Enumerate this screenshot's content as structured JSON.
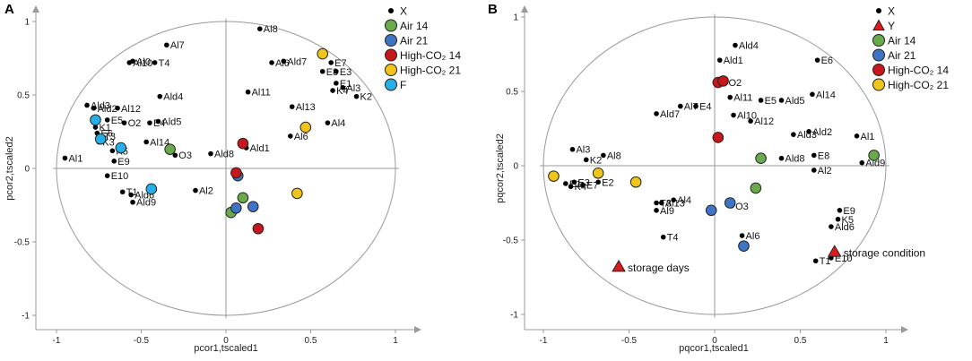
{
  "colors": {
    "x": "#000000",
    "air14": "#6aaa4c",
    "air21": "#3f74c4",
    "co2_14": "#c8161d",
    "co2_21": "#f0c51a",
    "f": "#25aee8",
    "y": "#e0191e",
    "guide": "#999999"
  },
  "chart_data": [
    {
      "type": "scatter",
      "panel": "A",
      "xlabel": "pcor1,tscaled1",
      "ylabel": "pcor2,tscaled2",
      "xlim": [
        -1.1,
        1.1
      ],
      "ylim": [
        -1.1,
        1.1
      ],
      "xticks": [
        "-1",
        "-0.5",
        "0",
        "0.5",
        "1"
      ],
      "yticks": [
        "-1",
        "-0.5",
        "0",
        "0.5",
        "1"
      ],
      "circle_radius": 1,
      "legend": [
        {
          "label": "X",
          "marker": "dot",
          "color_key": "x"
        },
        {
          "label": "Air 14",
          "marker": "circle",
          "color_key": "air14"
        },
        {
          "label": "Air 21",
          "marker": "circle",
          "color_key": "air21"
        },
        {
          "label": "High-CO₂ 14",
          "marker": "circle",
          "color_key": "co2_14"
        },
        {
          "label": "High-CO₂ 21",
          "marker": "circle",
          "color_key": "co2_21"
        },
        {
          "label": "F",
          "marker": "circle",
          "color_key": "f"
        }
      ],
      "variables": [
        {
          "label": "Al8",
          "x": 0.2,
          "y": 0.95
        },
        {
          "label": "Al7",
          "x": -0.35,
          "y": 0.84
        },
        {
          "label": "Al0",
          "x": -0.55,
          "y": 0.73
        },
        {
          "label": "Al10",
          "x": -0.57,
          "y": 0.72
        },
        {
          "label": "T4",
          "x": -0.42,
          "y": 0.72
        },
        {
          "label": "Ald7",
          "x": 0.34,
          "y": 0.73
        },
        {
          "label": "Al6",
          "x": 0.27,
          "y": 0.72
        },
        {
          "label": "E7",
          "x": 0.62,
          "y": 0.72
        },
        {
          "label": "E8",
          "x": 0.57,
          "y": 0.66
        },
        {
          "label": "E3",
          "x": 0.65,
          "y": 0.66
        },
        {
          "label": "E1",
          "x": 0.65,
          "y": 0.58
        },
        {
          "label": "Al3",
          "x": 0.69,
          "y": 0.55
        },
        {
          "label": "K4",
          "x": 0.63,
          "y": 0.53
        },
        {
          "label": "K2",
          "x": 0.77,
          "y": 0.49
        },
        {
          "label": "Al11",
          "x": 0.13,
          "y": 0.52
        },
        {
          "label": "Ald4",
          "x": -0.39,
          "y": 0.49
        },
        {
          "label": "Al13",
          "x": 0.39,
          "y": 0.42
        },
        {
          "label": "Al4",
          "x": 0.6,
          "y": 0.31
        },
        {
          "label": "Ald5",
          "x": -0.4,
          "y": 0.32
        },
        {
          "label": "Al6",
          "x": 0.38,
          "y": 0.22
        },
        {
          "label": "Ald3",
          "x": -0.82,
          "y": 0.43
        },
        {
          "label": "Ald2",
          "x": -0.78,
          "y": 0.41
        },
        {
          "label": "Al12",
          "x": -0.64,
          "y": 0.41
        },
        {
          "label": "E5",
          "x": -0.7,
          "y": 0.33
        },
        {
          "label": "O2",
          "x": -0.6,
          "y": 0.31
        },
        {
          "label": "E4",
          "x": -0.45,
          "y": 0.31
        },
        {
          "label": "K1",
          "x": -0.77,
          "y": 0.28
        },
        {
          "label": "E6",
          "x": -0.76,
          "y": 0.24
        },
        {
          "label": "T3",
          "x": -0.74,
          "y": 0.22
        },
        {
          "label": "K3",
          "x": -0.75,
          "y": 0.18
        },
        {
          "label": "Al14",
          "x": -0.47,
          "y": 0.18
        },
        {
          "label": "K5",
          "x": -0.67,
          "y": 0.12
        },
        {
          "label": "E9",
          "x": -0.66,
          "y": 0.05
        },
        {
          "label": "O3",
          "x": -0.3,
          "y": 0.09
        },
        {
          "label": "Al1",
          "x": -0.95,
          "y": 0.07
        },
        {
          "label": "Ald1",
          "x": 0.12,
          "y": 0.14
        },
        {
          "label": "Ald8",
          "x": -0.09,
          "y": 0.1
        },
        {
          "label": "E10",
          "x": -0.7,
          "y": -0.05
        },
        {
          "label": "Al2",
          "x": -0.18,
          "y": -0.15
        },
        {
          "label": "T1",
          "x": -0.61,
          "y": -0.16
        },
        {
          "label": "Ald6",
          "x": -0.56,
          "y": -0.18
        },
        {
          "label": "Ald9",
          "x": -0.55,
          "y": -0.23
        }
      ],
      "samples": [
        {
          "group": "air14",
          "x": -0.33,
          "y": 0.13
        },
        {
          "group": "air14",
          "x": 0.1,
          "y": -0.2
        },
        {
          "group": "air14",
          "x": 0.03,
          "y": -0.3
        },
        {
          "group": "air21",
          "x": 0.06,
          "y": -0.27
        },
        {
          "group": "air21",
          "x": 0.16,
          "y": -0.26
        },
        {
          "group": "air21",
          "x": 0.07,
          "y": -0.05
        },
        {
          "group": "co2_14",
          "x": 0.1,
          "y": 0.17
        },
        {
          "group": "co2_14",
          "x": 0.06,
          "y": -0.03
        },
        {
          "group": "co2_14",
          "x": 0.19,
          "y": -0.41
        },
        {
          "group": "co2_21",
          "x": 0.57,
          "y": 0.78
        },
        {
          "group": "co2_21",
          "x": 0.47,
          "y": 0.28
        },
        {
          "group": "co2_21",
          "x": 0.42,
          "y": -0.17
        },
        {
          "group": "f",
          "x": -0.77,
          "y": 0.33
        },
        {
          "group": "f",
          "x": -0.74,
          "y": 0.2
        },
        {
          "group": "f",
          "x": -0.62,
          "y": 0.14
        },
        {
          "group": "f",
          "x": -0.44,
          "y": -0.14
        }
      ]
    },
    {
      "type": "scatter",
      "panel": "B",
      "xlabel": "pqcor1,tscaled1",
      "ylabel": "pqcor2,tscaled2",
      "xlim": [
        -1.1,
        1.1
      ],
      "ylim": [
        -1.1,
        1.1
      ],
      "xticks": [
        "-1",
        "-0.5",
        "0",
        "0.5",
        "1"
      ],
      "yticks": [
        "-1",
        "-0.5",
        "0",
        "0.5",
        "1"
      ],
      "circle_radius": 1,
      "legend": [
        {
          "label": "X",
          "marker": "dot",
          "color_key": "x"
        },
        {
          "label": "Y",
          "marker": "triangle",
          "color_key": "y"
        },
        {
          "label": "Air 14",
          "marker": "circle",
          "color_key": "air14"
        },
        {
          "label": "Air 21",
          "marker": "circle",
          "color_key": "air21"
        },
        {
          "label": "High-CO₂ 14",
          "marker": "circle",
          "color_key": "co2_14"
        },
        {
          "label": "High-CO₂ 21",
          "marker": "circle",
          "color_key": "co2_21"
        }
      ],
      "variables": [
        {
          "label": "Ald4",
          "x": 0.12,
          "y": 0.81
        },
        {
          "label": "Ald1",
          "x": 0.03,
          "y": 0.71
        },
        {
          "label": "E6",
          "x": 0.6,
          "y": 0.71
        },
        {
          "label": "O2",
          "x": 0.06,
          "y": 0.56
        },
        {
          "label": "Al11",
          "x": 0.09,
          "y": 0.46
        },
        {
          "label": "E5",
          "x": 0.27,
          "y": 0.44
        },
        {
          "label": "Ald5",
          "x": 0.39,
          "y": 0.44
        },
        {
          "label": "Al14",
          "x": 0.57,
          "y": 0.48
        },
        {
          "label": "Al7",
          "x": -0.2,
          "y": 0.4
        },
        {
          "label": "E4",
          "x": -0.11,
          "y": 0.4
        },
        {
          "label": "Al10",
          "x": 0.11,
          "y": 0.34
        },
        {
          "label": "Ald7",
          "x": -0.34,
          "y": 0.35
        },
        {
          "label": "Al12",
          "x": 0.21,
          "y": 0.3
        },
        {
          "label": "Ald3",
          "x": 0.46,
          "y": 0.21
        },
        {
          "label": "Ald2",
          "x": 0.55,
          "y": 0.23
        },
        {
          "label": "Al1",
          "x": 0.83,
          "y": 0.2
        },
        {
          "label": "Al3",
          "x": -0.83,
          "y": 0.11
        },
        {
          "label": "K2",
          "x": -0.75,
          "y": 0.04
        },
        {
          "label": "Al8",
          "x": -0.65,
          "y": 0.07
        },
        {
          "label": "E8",
          "x": 0.58,
          "y": 0.07
        },
        {
          "label": "Ald8",
          "x": 0.39,
          "y": 0.05
        },
        {
          "label": "Al2",
          "x": 0.58,
          "y": -0.03
        },
        {
          "label": "Ald9",
          "x": 0.86,
          "y": 0.02
        },
        {
          "label": "E1",
          "x": -0.87,
          "y": -0.12
        },
        {
          "label": "E3",
          "x": -0.82,
          "y": -0.11
        },
        {
          "label": "K4",
          "x": -0.84,
          "y": -0.14
        },
        {
          "label": "E7",
          "x": -0.77,
          "y": -0.13
        },
        {
          "label": "E2",
          "x": -0.68,
          "y": -0.11
        },
        {
          "label": "T3",
          "x": -0.34,
          "y": -0.25
        },
        {
          "label": "Al13",
          "x": -0.31,
          "y": -0.25
        },
        {
          "label": "Al4",
          "x": -0.24,
          "y": -0.23
        },
        {
          "label": "Al9",
          "x": -0.34,
          "y": -0.3
        },
        {
          "label": "O3",
          "x": 0.1,
          "y": -0.27
        },
        {
          "label": "E9",
          "x": 0.73,
          "y": -0.3
        },
        {
          "label": "K5",
          "x": 0.72,
          "y": -0.36
        },
        {
          "label": "Ald6",
          "x": 0.68,
          "y": -0.41
        },
        {
          "label": "Al6",
          "x": 0.16,
          "y": -0.47
        },
        {
          "label": "T4",
          "x": -0.3,
          "y": -0.48
        },
        {
          "label": "T1",
          "x": 0.59,
          "y": -0.64
        },
        {
          "label": "E10",
          "x": 0.68,
          "y": -0.62
        }
      ],
      "response_markers": [
        {
          "label": "storage days",
          "x": -0.56,
          "y": -0.68
        },
        {
          "label": "storage condition",
          "x": 0.7,
          "y": -0.58
        }
      ],
      "samples": [
        {
          "group": "air14",
          "x": 0.27,
          "y": 0.05
        },
        {
          "group": "air14",
          "x": 0.24,
          "y": -0.15
        },
        {
          "group": "air14",
          "x": 0.93,
          "y": 0.07
        },
        {
          "group": "air21",
          "x": 0.09,
          "y": -0.25
        },
        {
          "group": "air21",
          "x": -0.02,
          "y": -0.3
        },
        {
          "group": "air21",
          "x": 0.17,
          "y": -0.54
        },
        {
          "group": "co2_14",
          "x": 0.02,
          "y": 0.56
        },
        {
          "group": "co2_14",
          "x": 0.05,
          "y": 0.57
        },
        {
          "group": "co2_14",
          "x": 0.02,
          "y": 0.19
        },
        {
          "group": "co2_21",
          "x": -0.94,
          "y": -0.07
        },
        {
          "group": "co2_21",
          "x": -0.68,
          "y": -0.05
        },
        {
          "group": "co2_21",
          "x": -0.46,
          "y": -0.11
        }
      ]
    }
  ]
}
